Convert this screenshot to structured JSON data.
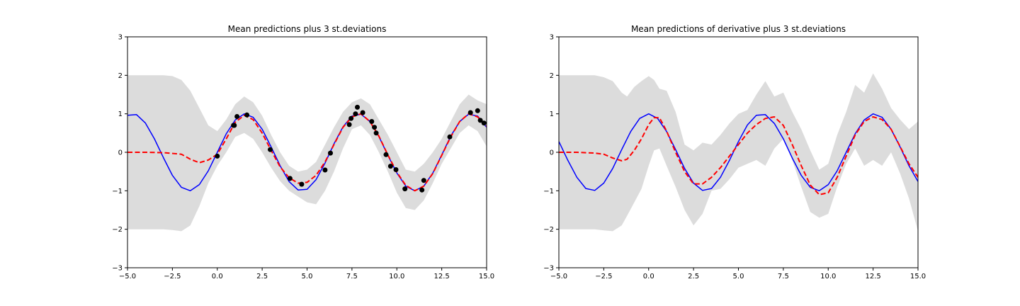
{
  "colors": {
    "band": "#dcdcdc",
    "true_curve": "#0000ff",
    "mean_curve": "#ff0000",
    "observations": "#000000"
  },
  "chart_data": [
    {
      "type": "line",
      "title": "Mean predictions plus 3 st.deviations",
      "xlim": [
        -5.0,
        15.0
      ],
      "ylim": [
        -3,
        3
      ],
      "xticks": [
        -5.0,
        -2.5,
        0.0,
        2.5,
        5.0,
        7.5,
        10.0,
        12.5,
        15.0
      ],
      "xtick_labels": [
        "−5.0",
        "−2.5",
        "0.0",
        "2.5",
        "5.0",
        "7.5",
        "10.0",
        "12.5",
        "15.0"
      ],
      "yticks": [
        -3,
        -2,
        -1,
        0,
        1,
        2,
        3
      ],
      "ytick_labels": [
        "−3",
        "−2",
        "−1",
        "0",
        "1",
        "2",
        "3"
      ],
      "grid": false,
      "true_function": {
        "style": "solid blue line",
        "x": [
          -5.0,
          -4.5,
          -4.0,
          -3.5,
          -3.0,
          -2.5,
          -2.0,
          -1.5,
          -1.0,
          -0.5,
          0.0,
          0.5,
          1.0,
          1.5,
          2.0,
          2.5,
          3.0,
          3.5,
          4.0,
          4.5,
          5.0,
          5.5,
          6.0,
          6.5,
          7.0,
          7.5,
          8.0,
          8.5,
          9.0,
          9.5,
          10.0,
          10.5,
          11.0,
          11.5,
          12.0,
          12.5,
          13.0,
          13.5,
          14.0,
          14.5,
          15.0
        ],
        "y": [
          0.96,
          0.98,
          0.76,
          0.35,
          -0.14,
          -0.6,
          -0.91,
          -1.0,
          -0.84,
          -0.48,
          0.0,
          0.48,
          0.84,
          1.0,
          0.91,
          0.6,
          0.14,
          -0.35,
          -0.76,
          -0.98,
          -0.96,
          -0.71,
          -0.28,
          0.22,
          0.66,
          0.94,
          0.99,
          0.8,
          0.41,
          -0.08,
          -0.54,
          -0.88,
          -1.0,
          -0.88,
          -0.54,
          -0.07,
          0.42,
          0.8,
          0.99,
          0.94,
          0.65
        ]
      },
      "mean_prediction": {
        "style": "dashed red line",
        "x": [
          -5.0,
          -4.0,
          -3.0,
          -2.0,
          -1.5,
          -1.0,
          -0.5,
          0.0,
          0.5,
          1.0,
          1.5,
          2.0,
          2.5,
          3.0,
          3.5,
          4.0,
          4.5,
          5.0,
          5.5,
          6.0,
          6.5,
          7.0,
          7.5,
          8.0,
          8.5,
          9.0,
          9.5,
          10.0,
          10.5,
          11.0,
          11.5,
          12.0,
          12.5,
          13.0,
          13.5,
          14.0,
          14.5,
          15.0
        ],
        "y": [
          0.0,
          0.0,
          -0.01,
          -0.05,
          -0.18,
          -0.27,
          -0.2,
          -0.05,
          0.35,
          0.78,
          0.96,
          0.85,
          0.5,
          0.05,
          -0.38,
          -0.66,
          -0.8,
          -0.78,
          -0.6,
          -0.25,
          0.2,
          0.65,
          0.92,
          1.0,
          0.8,
          0.42,
          -0.07,
          -0.52,
          -0.86,
          -1.0,
          -0.88,
          -0.55,
          -0.08,
          0.4,
          0.8,
          1.0,
          0.92,
          0.68
        ]
      },
      "band_upper": {
        "x": [
          -5.0,
          -3.0,
          -2.5,
          -2.0,
          -1.5,
          -1.0,
          -0.5,
          0.0,
          0.5,
          1.0,
          1.5,
          2.0,
          2.5,
          3.0,
          3.5,
          4.0,
          4.5,
          5.0,
          5.5,
          6.0,
          6.5,
          7.0,
          7.5,
          8.0,
          8.5,
          9.0,
          9.5,
          10.0,
          10.5,
          11.0,
          11.5,
          12.0,
          12.5,
          13.0,
          13.5,
          14.0,
          14.5,
          15.0
        ],
        "y": [
          2.0,
          2.0,
          1.98,
          1.88,
          1.6,
          1.15,
          0.7,
          0.55,
          0.85,
          1.25,
          1.45,
          1.3,
          0.95,
          0.45,
          0.0,
          -0.35,
          -0.5,
          -0.45,
          -0.25,
          0.2,
          0.65,
          1.05,
          1.3,
          1.4,
          1.25,
          0.85,
          0.45,
          0.0,
          -0.45,
          -0.5,
          -0.3,
          0.0,
          0.35,
          0.8,
          1.25,
          1.5,
          1.35,
          1.25
        ]
      },
      "band_lower": {
        "x": [
          -5.0,
          -3.0,
          -2.5,
          -2.0,
          -1.5,
          -1.0,
          -0.5,
          0.0,
          0.5,
          1.0,
          1.5,
          2.0,
          2.5,
          3.0,
          3.5,
          4.0,
          4.5,
          5.0,
          5.5,
          6.0,
          6.5,
          7.0,
          7.5,
          8.0,
          8.5,
          9.0,
          9.5,
          10.0,
          10.5,
          11.0,
          11.5,
          12.0,
          12.5,
          13.0,
          13.5,
          14.0,
          14.5,
          15.0
        ],
        "y": [
          -2.0,
          -2.0,
          -2.02,
          -2.05,
          -1.9,
          -1.4,
          -0.8,
          -0.35,
          0.0,
          0.4,
          0.5,
          0.35,
          0.0,
          -0.4,
          -0.75,
          -1.0,
          -1.15,
          -1.3,
          -1.35,
          -1.0,
          -0.5,
          0.1,
          0.6,
          0.7,
          0.45,
          0.0,
          -0.5,
          -1.05,
          -1.45,
          -1.5,
          -1.25,
          -0.8,
          -0.3,
          0.1,
          0.5,
          0.7,
          0.55,
          0.15
        ]
      },
      "observations": {
        "style": "black dots",
        "x": [
          0.0,
          0.9,
          0.95,
          1.1,
          1.65,
          2.95,
          4.05,
          4.7,
          6.0,
          6.3,
          7.35,
          7.45,
          7.7,
          7.8,
          8.1,
          8.6,
          8.75,
          8.85,
          9.4,
          9.65,
          9.95,
          10.45,
          11.4,
          11.5,
          12.95,
          14.1,
          14.5,
          14.65,
          14.85
        ],
        "y": [
          -0.1,
          0.7,
          0.7,
          0.93,
          0.97,
          0.07,
          -0.68,
          -0.83,
          -0.46,
          -0.02,
          0.72,
          0.88,
          1.0,
          1.17,
          1.03,
          0.8,
          0.65,
          0.5,
          -0.06,
          -0.36,
          -0.45,
          -0.95,
          -0.98,
          -0.73,
          0.4,
          1.03,
          1.08,
          0.83,
          0.76
        ]
      }
    },
    {
      "type": "line",
      "title": "Mean predictions of derivative plus 3 st.deviations",
      "xlim": [
        -5.0,
        15.0
      ],
      "ylim": [
        -3,
        3
      ],
      "xticks": [
        -5.0,
        -2.5,
        0.0,
        2.5,
        5.0,
        7.5,
        10.0,
        12.5,
        15.0
      ],
      "xtick_labels": [
        "−5.0",
        "−2.5",
        "0.0",
        "2.5",
        "5.0",
        "7.5",
        "10.0",
        "12.5",
        "15.0"
      ],
      "yticks": [
        -3,
        -2,
        -1,
        0,
        1,
        2,
        3
      ],
      "ytick_labels": [
        "−3",
        "−2",
        "−1",
        "0",
        "1",
        "2",
        "3"
      ],
      "grid": false,
      "true_function": {
        "style": "solid blue line",
        "x": [
          -5.0,
          -4.5,
          -4.0,
          -3.5,
          -3.0,
          -2.5,
          -2.0,
          -1.5,
          -1.0,
          -0.5,
          0.0,
          0.5,
          1.0,
          1.5,
          2.0,
          2.5,
          3.0,
          3.5,
          4.0,
          4.5,
          5.0,
          5.5,
          6.0,
          6.5,
          7.0,
          7.5,
          8.0,
          8.5,
          9.0,
          9.5,
          10.0,
          10.5,
          11.0,
          11.5,
          12.0,
          12.5,
          13.0,
          13.5,
          14.0,
          14.5,
          15.0
        ],
        "y": [
          0.28,
          -0.21,
          -0.65,
          -0.94,
          -0.99,
          -0.8,
          -0.42,
          0.07,
          0.54,
          0.88,
          1.0,
          0.88,
          0.54,
          0.07,
          -0.42,
          -0.8,
          -0.99,
          -0.94,
          -0.65,
          -0.21,
          0.28,
          0.71,
          0.96,
          0.98,
          0.75,
          0.35,
          -0.15,
          -0.6,
          -0.91,
          -1.0,
          -0.84,
          -0.48,
          0.0,
          0.48,
          0.84,
          1.0,
          0.91,
          0.6,
          0.14,
          -0.35,
          -0.76
        ]
      },
      "mean_prediction": {
        "style": "dashed red line",
        "x": [
          -5.0,
          -4.0,
          -3.0,
          -2.5,
          -2.0,
          -1.5,
          -1.2,
          -0.8,
          -0.4,
          0.0,
          0.3,
          0.6,
          1.0,
          1.5,
          2.0,
          2.5,
          3.0,
          3.5,
          4.0,
          4.5,
          5.0,
          5.5,
          6.0,
          6.5,
          7.0,
          7.5,
          8.0,
          8.5,
          9.0,
          9.5,
          10.0,
          10.5,
          11.0,
          11.5,
          12.0,
          12.5,
          13.0,
          13.5,
          14.0,
          14.5,
          15.0
        ],
        "y": [
          0.0,
          0.0,
          -0.02,
          -0.05,
          -0.15,
          -0.22,
          -0.18,
          0.05,
          0.35,
          0.72,
          0.9,
          0.9,
          0.55,
          0.0,
          -0.5,
          -0.82,
          -0.82,
          -0.65,
          -0.4,
          -0.1,
          0.2,
          0.5,
          0.72,
          0.88,
          0.92,
          0.7,
          0.2,
          -0.35,
          -0.85,
          -1.1,
          -1.05,
          -0.65,
          -0.1,
          0.45,
          0.8,
          0.92,
          0.85,
          0.6,
          0.15,
          -0.3,
          -0.65
        ]
      },
      "band_upper": {
        "x": [
          -5.0,
          -3.0,
          -2.5,
          -2.0,
          -1.5,
          -1.2,
          -0.8,
          -0.4,
          0.0,
          0.3,
          0.6,
          1.0,
          1.5,
          2.0,
          2.5,
          3.0,
          3.5,
          4.0,
          4.5,
          5.0,
          5.5,
          6.0,
          6.5,
          7.0,
          7.5,
          8.0,
          8.5,
          9.0,
          9.5,
          10.0,
          10.5,
          11.0,
          11.5,
          12.0,
          12.5,
          13.0,
          13.5,
          14.0,
          14.5,
          15.0
        ],
        "y": [
          2.0,
          2.0,
          1.95,
          1.85,
          1.55,
          1.45,
          1.7,
          1.85,
          1.98,
          1.88,
          1.65,
          1.6,
          1.05,
          0.2,
          0.05,
          0.25,
          0.2,
          0.45,
          0.75,
          1.0,
          1.1,
          1.5,
          1.85,
          1.45,
          1.55,
          1.05,
          0.6,
          0.05,
          -0.45,
          -0.3,
          0.45,
          1.05,
          1.75,
          1.55,
          2.05,
          1.65,
          1.15,
          0.85,
          0.6,
          0.8
        ]
      },
      "band_lower": {
        "x": [
          -5.0,
          -3.0,
          -2.5,
          -2.0,
          -1.5,
          -1.2,
          -0.8,
          -0.4,
          0.0,
          0.3,
          0.6,
          1.0,
          1.5,
          2.0,
          2.5,
          3.0,
          3.5,
          4.0,
          4.5,
          5.0,
          5.5,
          6.0,
          6.5,
          7.0,
          7.5,
          8.0,
          8.5,
          9.0,
          9.5,
          10.0,
          10.5,
          11.0,
          11.5,
          12.0,
          12.5,
          13.0,
          13.5,
          14.0,
          14.5,
          15.0
        ],
        "y": [
          -2.0,
          -2.0,
          -2.03,
          -2.05,
          -1.9,
          -1.65,
          -1.3,
          -0.95,
          -0.35,
          0.05,
          0.1,
          -0.35,
          -0.9,
          -1.5,
          -1.9,
          -1.6,
          -1.0,
          -0.95,
          -0.7,
          -0.4,
          -0.3,
          -0.2,
          -0.35,
          0.1,
          0.35,
          -0.2,
          -0.9,
          -1.55,
          -1.7,
          -1.6,
          -0.9,
          -0.3,
          0.1,
          -0.35,
          -0.2,
          -0.35,
          0.0,
          -0.55,
          -1.2,
          -2.05
        ]
      }
    }
  ]
}
